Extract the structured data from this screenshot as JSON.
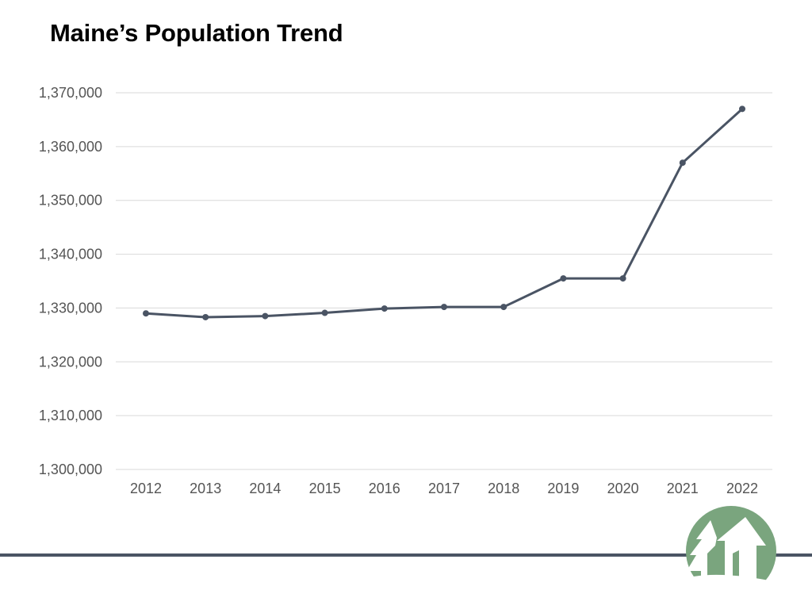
{
  "slide": {
    "title": "Maine’s Population Trend"
  },
  "colors": {
    "line": "#4a5464",
    "grid": "#d9d9d9",
    "footer": "#4a5464",
    "logo_green": "#7aa57e"
  },
  "logo": {
    "icon": "tree-house-logo-icon"
  },
  "chart_data": {
    "type": "line",
    "title": "Maine’s Population Trend",
    "xlabel": "",
    "ylabel": "",
    "categories": [
      "2012",
      "2013",
      "2014",
      "2015",
      "2016",
      "2017",
      "2018",
      "2019",
      "2020",
      "2021",
      "2022"
    ],
    "series": [
      {
        "name": "Population",
        "values": [
          1329000,
          1328300,
          1328500,
          1329100,
          1329900,
          1330200,
          1330200,
          1335500,
          1335500,
          1357000,
          1367000
        ]
      }
    ],
    "ylim": [
      1300000,
      1370000
    ],
    "yticks": [
      1300000,
      1310000,
      1320000,
      1330000,
      1340000,
      1350000,
      1360000,
      1370000
    ],
    "ytick_labels": [
      "1,300,000",
      "1,310,000",
      "1,320,000",
      "1,330,000",
      "1,340,000",
      "1,350,000",
      "1,360,000",
      "1,370,000"
    ],
    "grid": true,
    "legend": "none",
    "markers": true
  }
}
